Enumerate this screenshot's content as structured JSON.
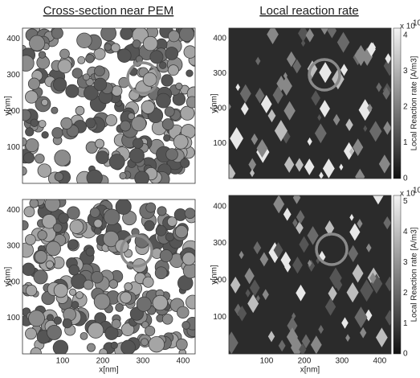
{
  "column_titles": [
    "Cross-section near PEM",
    "Local reaction rate"
  ],
  "panels": [
    {
      "y_label": "y[nm]",
      "y_ticks": [
        100,
        200,
        300,
        400
      ]
    },
    {
      "y_label": "y[nm]",
      "y_ticks": [
        100,
        200,
        300,
        400
      ],
      "colorbar": {
        "multiplier": "x 10",
        "exponent": "10",
        "label": "Local Reaction rate [A/m3]",
        "ticks": [
          0,
          1,
          2,
          3,
          4
        ]
      }
    },
    {
      "y_label": "y[nm]",
      "y_ticks": [
        100,
        200,
        300,
        400
      ],
      "x_label": "x[nm]",
      "x_ticks": [
        100,
        200,
        300,
        400
      ]
    },
    {
      "y_label": "y[nm]",
      "y_ticks": [
        100,
        200,
        300,
        400
      ],
      "x_label": "x[nm]",
      "x_ticks": [
        100,
        200,
        300,
        400
      ],
      "colorbar": {
        "multiplier": "x 10",
        "exponent": "10",
        "label": "Local Reaction rate [A/m3]",
        "ticks": [
          0,
          1,
          2,
          3,
          4,
          5
        ]
      }
    }
  ]
}
